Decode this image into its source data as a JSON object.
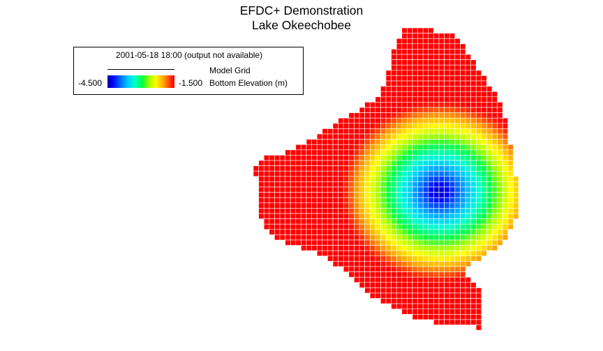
{
  "title": {
    "line1": "EFDC+ Demonstration",
    "line2": "Lake Okeechobee"
  },
  "legend": {
    "timestamp": "2001-05-18 18:00 (output not available)",
    "grid_label": "Model Grid",
    "min_label": "-4.500",
    "max_label": "-1.500",
    "variable_label": "Bottom Elevation (m)"
  },
  "colors": {
    "land_edge": "#ff0000",
    "deep": "#0000c8",
    "grid_line": "#ffffff"
  },
  "scale": {
    "min": -4.5,
    "max": -1.5
  }
}
